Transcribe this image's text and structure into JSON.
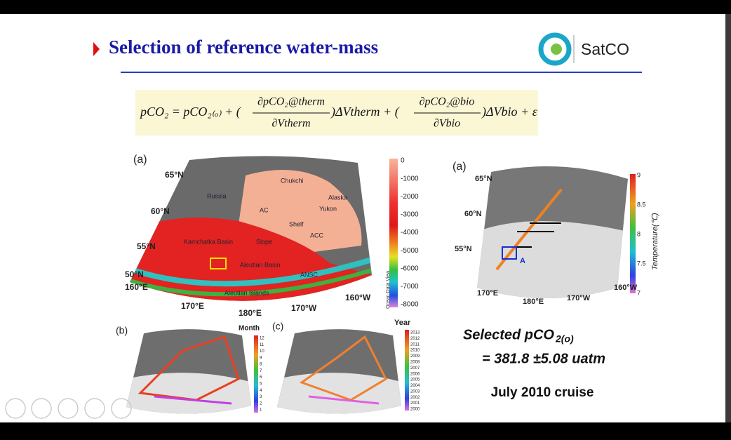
{
  "header": {
    "title": "Selection of reference water-mass",
    "logo_text": "SatCO"
  },
  "equation": {
    "lhs": "pCO₂ = pCO₂₍ₒ₎ + (",
    "frac1_num": "∂pCO₂@therm",
    "frac1_den": "∂Vtherm",
    "mid": ")ΔVtherm + (",
    "frac2_num": "∂pCO₂@bio",
    "frac2_den": "∂Vbio",
    "tail": ")ΔVbio + ε"
  },
  "map_a": {
    "panel": "(a)",
    "lat_labels": [
      "65°N",
      "60°N",
      "55°N",
      "50°N"
    ],
    "lon_labels": [
      "160°E",
      "170°E",
      "180°E",
      "170°W",
      "160°W"
    ],
    "places": [
      "Russia",
      "Chukchi",
      "Alaska",
      "AC",
      "Yukon",
      "Shelf",
      "ACC",
      "Slope",
      "Kamchatka Basin",
      "Aleutian Basin",
      "ANSC",
      "Aleutian Islands"
    ],
    "colorbar_ticks": [
      "0",
      "-1000",
      "-2000",
      "-3000",
      "-4000",
      "-5000",
      "-6000",
      "-7000",
      "-8000"
    ],
    "colorbar_title": "Ocean Data View"
  },
  "map_right": {
    "panel": "(a)",
    "lat_labels": [
      "65°N",
      "60°N",
      "55°N"
    ],
    "lon_labels": [
      "170°E",
      "180°E",
      "170°W",
      "160°W"
    ],
    "marker": "A",
    "colorbar_ticks": [
      "9",
      "8.5",
      "8",
      "7.5",
      "7"
    ],
    "colorbar_title": "Temperature(℃)"
  },
  "map_b": {
    "panel": "(b)",
    "colorbar_title": "Month",
    "colorbar_ticks": [
      "12",
      "11",
      "10",
      "9",
      "8",
      "7",
      "6",
      "5",
      "4",
      "3",
      "2",
      "1"
    ]
  },
  "map_c": {
    "panel": "(c)",
    "colorbar_title": "Year",
    "colorbar_ticks": [
      "2013",
      "2012",
      "2011",
      "2010",
      "2009",
      "2008",
      "2007",
      "2006",
      "2005",
      "2004",
      "2003",
      "2002",
      "2001",
      "2000"
    ]
  },
  "result": {
    "label": "Selected pCO",
    "label_sub": "2(o)",
    "value": "= 381.8 ±5.08 uatm",
    "cruise": "July 2010 cruise"
  }
}
